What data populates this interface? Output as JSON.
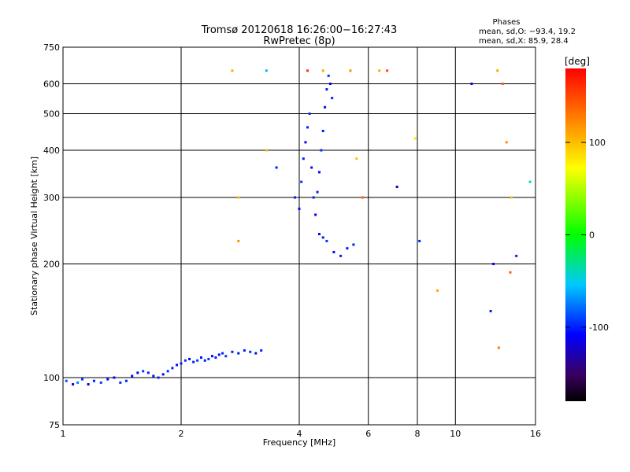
{
  "chart_data": {
    "type": "scatter",
    "title": "Tromsø 20120618 16:26:00−16:27:43",
    "subtitle": "RwPretec (8p)",
    "xlabel": "Frequency [MHz]",
    "ylabel": "Stationary phase Virtual Height [km]",
    "x_scale": "log",
    "y_scale": "log",
    "xlim": [
      1,
      16
    ],
    "ylim": [
      75,
      750
    ],
    "x_ticks": [
      1,
      2,
      4,
      6,
      8,
      10,
      16
    ],
    "y_ticks": [
      75,
      100,
      200,
      300,
      400,
      500,
      600,
      750
    ],
    "x_gridlines": [
      2,
      4,
      6,
      8,
      10
    ],
    "y_gridlines": [
      100,
      200,
      300,
      400,
      500,
      600
    ],
    "grid": true,
    "stats": {
      "heading": "Phases",
      "line1": "mean, sd,O: −93.4, 19.2",
      "line2": "mean, sd,X:  85.9, 28.4"
    },
    "colorbar": {
      "label": "[deg]",
      "min": -180,
      "max": 180,
      "ticks": [
        100,
        0,
        -100
      ],
      "colormap": "rainbow: black(-180) → purple → blue → cyan → green(0) → yellow → orange → red(180)"
    },
    "series": [
      {
        "description": "E-layer trace (O-mode, mostly blue, phase ≈ -100 deg)",
        "points": [
          [
            1.02,
            98,
            -85
          ],
          [
            1.06,
            96,
            -110
          ],
          [
            1.09,
            97,
            -75
          ],
          [
            1.12,
            99,
            -95
          ],
          [
            1.16,
            96,
            -120
          ],
          [
            1.2,
            98,
            -100
          ],
          [
            1.25,
            97,
            -90
          ],
          [
            1.3,
            99,
            -105
          ],
          [
            1.35,
            100,
            -110
          ],
          [
            1.4,
            97,
            -95
          ],
          [
            1.45,
            98,
            -100
          ],
          [
            1.5,
            101,
            -105
          ],
          [
            1.55,
            103,
            -110
          ],
          [
            1.6,
            104,
            -95
          ],
          [
            1.65,
            103,
            -100
          ],
          [
            1.7,
            101,
            -105
          ],
          [
            1.75,
            100,
            -100
          ],
          [
            1.8,
            102,
            -110
          ],
          [
            1.85,
            104,
            -95
          ],
          [
            1.9,
            106,
            -100
          ],
          [
            1.95,
            108,
            -105
          ],
          [
            2.0,
            109,
            -100
          ],
          [
            2.05,
            111,
            -95
          ],
          [
            2.1,
            112,
            -110
          ],
          [
            2.15,
            110,
            -100
          ],
          [
            2.2,
            111,
            -90
          ],
          [
            2.25,
            113,
            -105
          ],
          [
            2.3,
            111,
            -100
          ],
          [
            2.35,
            112,
            -95
          ],
          [
            2.4,
            114,
            -110
          ],
          [
            2.45,
            113,
            -100
          ],
          [
            2.5,
            115,
            -105
          ],
          [
            2.55,
            116,
            -100
          ],
          [
            2.6,
            114,
            -95
          ],
          [
            2.7,
            117,
            -100
          ],
          [
            2.8,
            116,
            -105
          ],
          [
            2.9,
            118,
            -100
          ],
          [
            3.0,
            117,
            -95
          ],
          [
            3.1,
            116,
            -105
          ],
          [
            3.2,
            118,
            -100
          ]
        ]
      },
      {
        "description": "F-layer trace (O-mode, blue, phase ≈ -100 deg)",
        "points": [
          [
            3.9,
            300,
            -100
          ],
          [
            4.0,
            280,
            -105
          ],
          [
            4.05,
            330,
            -95
          ],
          [
            4.1,
            380,
            -100
          ],
          [
            4.15,
            420,
            -110
          ],
          [
            4.2,
            460,
            -100
          ],
          [
            4.25,
            500,
            -95
          ],
          [
            4.3,
            360,
            -105
          ],
          [
            4.35,
            300,
            -100
          ],
          [
            4.4,
            270,
            -110
          ],
          [
            4.45,
            310,
            -100
          ],
          [
            4.5,
            350,
            -105
          ],
          [
            4.55,
            400,
            -95
          ],
          [
            4.6,
            450,
            -100
          ],
          [
            4.65,
            520,
            -105
          ],
          [
            4.7,
            580,
            -100
          ],
          [
            4.75,
            630,
            -95
          ],
          [
            4.8,
            600,
            -110
          ],
          [
            4.85,
            550,
            -100
          ],
          [
            4.5,
            240,
            -105
          ],
          [
            4.6,
            235,
            -100
          ],
          [
            4.7,
            230,
            -95
          ],
          [
            4.9,
            215,
            -105
          ],
          [
            5.1,
            210,
            -100
          ],
          [
            5.3,
            220,
            -105
          ],
          [
            5.5,
            225,
            -100
          ]
        ]
      },
      {
        "description": "Scattered noise echoes (mixed phases)",
        "points": [
          [
            2.7,
            650,
            110
          ],
          [
            2.8,
            300,
            100
          ],
          [
            2.8,
            230,
            120
          ],
          [
            3.3,
            650,
            -60
          ],
          [
            3.3,
            400,
            100
          ],
          [
            3.5,
            360,
            -100
          ],
          [
            4.2,
            650,
            160
          ],
          [
            4.6,
            650,
            110
          ],
          [
            5.4,
            650,
            120
          ],
          [
            5.6,
            380,
            100
          ],
          [
            5.8,
            300,
            140
          ],
          [
            6.4,
            650,
            110
          ],
          [
            6.7,
            650,
            150
          ],
          [
            7.1,
            320,
            -120
          ],
          [
            7.9,
            430,
            80
          ],
          [
            8.1,
            230,
            -100
          ],
          [
            9.0,
            170,
            110
          ],
          [
            11.0,
            600,
            -110
          ],
          [
            12.8,
            650,
            110
          ],
          [
            13.2,
            600,
            140
          ],
          [
            13.5,
            420,
            120
          ],
          [
            13.9,
            300,
            100
          ],
          [
            12.5,
            200,
            -110
          ],
          [
            12.3,
            150,
            -100
          ],
          [
            12.9,
            120,
            130
          ],
          [
            13.8,
            190,
            140
          ],
          [
            14.3,
            210,
            -100
          ],
          [
            15.5,
            330,
            -40
          ]
        ]
      }
    ]
  }
}
